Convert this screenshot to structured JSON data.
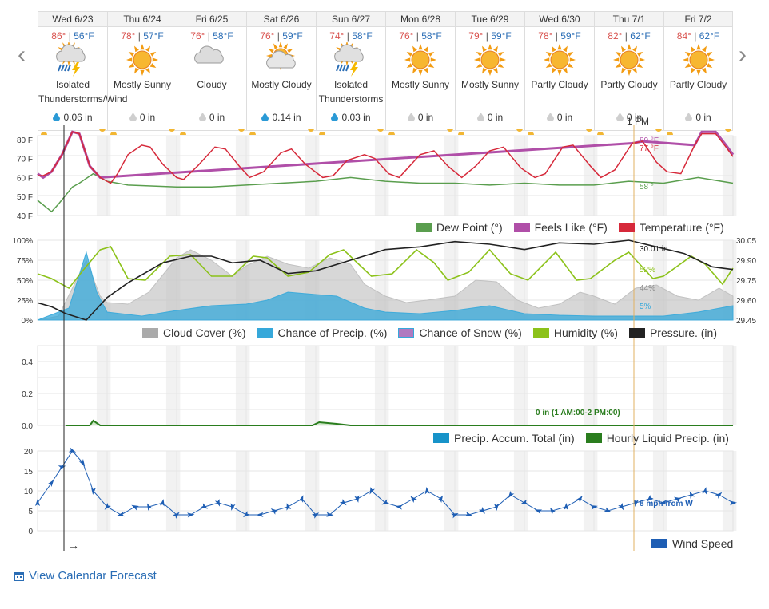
{
  "days": [
    {
      "label": "Wed 6/23",
      "hi": "86°",
      "lo": "56°F",
      "icon": "thunderstorm-icon",
      "cond1": "Isolated",
      "cond2": "Thunderstorms/Wind",
      "precip": "0.06 in",
      "drop": "blue"
    },
    {
      "label": "Thu 6/24",
      "hi": "78°",
      "lo": "57°F",
      "icon": "sun-icon",
      "cond1": "Mostly Sunny",
      "cond2": "",
      "precip": "0 in",
      "drop": "gray"
    },
    {
      "label": "Fri 6/25",
      "hi": "76°",
      "lo": "58°F",
      "icon": "cloud-icon",
      "cond1": "Cloudy",
      "cond2": "",
      "precip": "0 in",
      "drop": "gray"
    },
    {
      "label": "Sat 6/26",
      "hi": "76°",
      "lo": "59°F",
      "icon": "sun-cloud-icon",
      "cond1": "Mostly Cloudy",
      "cond2": "",
      "precip": "0.14 in",
      "drop": "blue"
    },
    {
      "label": "Sun 6/27",
      "hi": "74°",
      "lo": "58°F",
      "icon": "thunderstorm-icon",
      "cond1": "Isolated",
      "cond2": "Thunderstorms",
      "precip": "0.03 in",
      "drop": "blue"
    },
    {
      "label": "Mon 6/28",
      "hi": "76°",
      "lo": "58°F",
      "icon": "sun-icon",
      "cond1": "Mostly Sunny",
      "cond2": "",
      "precip": "0 in",
      "drop": "gray"
    },
    {
      "label": "Tue 6/29",
      "hi": "79°",
      "lo": "59°F",
      "icon": "sun-icon",
      "cond1": "Mostly Sunny",
      "cond2": "",
      "precip": "0 in",
      "drop": "gray"
    },
    {
      "label": "Wed 6/30",
      "hi": "78°",
      "lo": "59°F",
      "icon": "sun-icon",
      "cond1": "Partly Cloudy",
      "cond2": "",
      "precip": "0 in",
      "drop": "gray"
    },
    {
      "label": "Thu 7/1",
      "hi": "82°",
      "lo": "62°F",
      "icon": "sun-icon",
      "cond1": "Partly Cloudy",
      "cond2": "",
      "precip": "0 in",
      "drop": "gray"
    },
    {
      "label": "Fri 7/2",
      "hi": "84°",
      "lo": "62°F",
      "icon": "sun-icon",
      "cond1": "Partly Cloudy",
      "cond2": "",
      "precip": "0 in",
      "drop": "gray"
    }
  ],
  "nav": {
    "prev": "‹",
    "next": "›"
  },
  "cursor": {
    "time": "1 PM"
  },
  "calendar_link": "View Calendar Forecast",
  "colors": {
    "temperature": "#d6293a",
    "feels_like": "#b04fa8",
    "dew_point": "#5a9e4e",
    "cloud": "#bdbdbd",
    "precip_chance": "#36a8da",
    "humidity": "#8cc21a",
    "pressure": "#222222",
    "accum": "#1793c9",
    "hourly_precip": "#2a7d1e",
    "wind": "#1e5eb4",
    "cursor": "#e0b060"
  },
  "chart_data": [
    {
      "type": "line",
      "name": "temperature-panel",
      "ylim": [
        40,
        90
      ],
      "yticks": [
        "80 F",
        "70 F",
        "60 F",
        "50 F",
        "40 F"
      ],
      "legend": [
        "Dew Point (°)",
        "Feels Like (°F)",
        "Temperature (°F)"
      ],
      "x_days": [
        0,
        1,
        2,
        3,
        4,
        5,
        6,
        7,
        8,
        9,
        10
      ],
      "temperature_points": [
        [
          0,
          61
        ],
        [
          0.08,
          61
        ],
        [
          0.2,
          63
        ],
        [
          0.35,
          72
        ],
        [
          0.5,
          84
        ],
        [
          0.6,
          83
        ],
        [
          0.75,
          66
        ],
        [
          0.9,
          60
        ],
        [
          1.05,
          57
        ],
        [
          1.15,
          62
        ],
        [
          1.3,
          72
        ],
        [
          1.5,
          77
        ],
        [
          1.62,
          76
        ],
        [
          1.8,
          67
        ],
        [
          2.0,
          60
        ],
        [
          2.1,
          59
        ],
        [
          2.3,
          66
        ],
        [
          2.55,
          76
        ],
        [
          2.7,
          75
        ],
        [
          2.9,
          66
        ],
        [
          3.05,
          60
        ],
        [
          3.25,
          63
        ],
        [
          3.5,
          73
        ],
        [
          3.65,
          75
        ],
        [
          3.85,
          67
        ],
        [
          4.1,
          60
        ],
        [
          4.25,
          61
        ],
        [
          4.45,
          69
        ],
        [
          4.7,
          72
        ],
        [
          4.85,
          70
        ],
        [
          5.05,
          62
        ],
        [
          5.2,
          60
        ],
        [
          5.5,
          72
        ],
        [
          5.7,
          74
        ],
        [
          5.9,
          66
        ],
        [
          6.1,
          60
        ],
        [
          6.3,
          66
        ],
        [
          6.5,
          74
        ],
        [
          6.7,
          76
        ],
        [
          6.95,
          65
        ],
        [
          7.15,
          60
        ],
        [
          7.3,
          62
        ],
        [
          7.55,
          76
        ],
        [
          7.7,
          77
        ],
        [
          7.95,
          66
        ],
        [
          8.1,
          60
        ],
        [
          8.3,
          64
        ],
        [
          8.55,
          78
        ],
        [
          8.7,
          79
        ],
        [
          8.9,
          68
        ],
        [
          9.05,
          63
        ],
        [
          9.25,
          62
        ],
        [
          9.45,
          77
        ],
        [
          9.55,
          83
        ],
        [
          9.75,
          83
        ],
        [
          9.9,
          76
        ],
        [
          10,
          71
        ]
      ],
      "feels_like_points": [
        [
          0,
          62
        ],
        [
          0.08,
          60
        ],
        [
          0.2,
          63
        ],
        [
          0.35,
          72
        ],
        [
          0.5,
          84
        ],
        [
          0.6,
          83
        ],
        [
          0.75,
          66
        ],
        [
          0.9,
          60
        ],
        [
          8.55,
          78
        ],
        [
          8.7,
          79
        ],
        [
          9.45,
          77
        ],
        [
          9.55,
          84
        ],
        [
          9.75,
          84
        ],
        [
          9.9,
          77
        ],
        [
          10,
          72
        ]
      ],
      "dew_point_points": [
        [
          0,
          48
        ],
        [
          0.1,
          45
        ],
        [
          0.2,
          42
        ],
        [
          0.3,
          46
        ],
        [
          0.5,
          55
        ],
        [
          0.6,
          57
        ],
        [
          0.8,
          62
        ],
        [
          1.0,
          58
        ],
        [
          1.3,
          56
        ],
        [
          2.0,
          55
        ],
        [
          2.5,
          55
        ],
        [
          3.0,
          56
        ],
        [
          3.5,
          57
        ],
        [
          4.0,
          58
        ],
        [
          4.5,
          60
        ],
        [
          5.0,
          58
        ],
        [
          5.5,
          57
        ],
        [
          6.0,
          57
        ],
        [
          6.5,
          56
        ],
        [
          7.0,
          57
        ],
        [
          7.5,
          56
        ],
        [
          8.0,
          56
        ],
        [
          8.5,
          58
        ],
        [
          9.0,
          57
        ],
        [
          9.5,
          60
        ],
        [
          10,
          57
        ]
      ],
      "labels": [
        "80 °F",
        "77 °F",
        "58 °"
      ]
    },
    {
      "type": "area",
      "name": "sky-panel",
      "ylim": [
        0,
        100
      ],
      "yticks": [
        "100%",
        "75%",
        "50%",
        "25%",
        "0%"
      ],
      "y2ticks": [
        "30.05",
        "29.90",
        "29.75",
        "29.60",
        "29.45"
      ],
      "y2lim": [
        29.45,
        30.05
      ],
      "legend": [
        "Cloud Cover (%)",
        "Chance of Precip. (%)",
        "Chance of Snow (%)",
        "Humidity (%)",
        "Pressure. (in)"
      ],
      "cloud_points": [
        [
          0,
          0
        ],
        [
          0.3,
          5
        ],
        [
          0.5,
          40
        ],
        [
          0.7,
          75
        ],
        [
          0.9,
          30
        ],
        [
          1.0,
          22
        ],
        [
          1.3,
          20
        ],
        [
          1.6,
          35
        ],
        [
          2.0,
          78
        ],
        [
          2.2,
          88
        ],
        [
          2.5,
          75
        ],
        [
          2.8,
          55
        ],
        [
          3.0,
          68
        ],
        [
          3.3,
          80
        ],
        [
          3.6,
          70
        ],
        [
          3.9,
          65
        ],
        [
          4.2,
          78
        ],
        [
          4.5,
          70
        ],
        [
          4.7,
          45
        ],
        [
          5.0,
          30
        ],
        [
          5.3,
          22
        ],
        [
          5.6,
          25
        ],
        [
          6.0,
          30
        ],
        [
          6.3,
          50
        ],
        [
          6.6,
          48
        ],
        [
          6.9,
          25
        ],
        [
          7.2,
          15
        ],
        [
          7.5,
          20
        ],
        [
          7.8,
          35
        ],
        [
          8.0,
          30
        ],
        [
          8.3,
          20
        ],
        [
          8.6,
          40
        ],
        [
          8.9,
          44
        ],
        [
          9.2,
          30
        ],
        [
          9.5,
          25
        ],
        [
          9.8,
          40
        ],
        [
          10,
          30
        ]
      ],
      "precip_points": [
        [
          0,
          0
        ],
        [
          0.45,
          15
        ],
        [
          0.7,
          85
        ],
        [
          0.85,
          35
        ],
        [
          1.0,
          10
        ],
        [
          1.5,
          5
        ],
        [
          2.0,
          12
        ],
        [
          2.5,
          18
        ],
        [
          3.0,
          20
        ],
        [
          3.3,
          25
        ],
        [
          3.6,
          35
        ],
        [
          4.0,
          32
        ],
        [
          4.3,
          30
        ],
        [
          4.7,
          15
        ],
        [
          5.0,
          10
        ],
        [
          5.5,
          8
        ],
        [
          6.0,
          12
        ],
        [
          6.5,
          18
        ],
        [
          6.8,
          12
        ],
        [
          7.0,
          8
        ],
        [
          7.5,
          6
        ],
        [
          8.0,
          5
        ],
        [
          8.5,
          5
        ],
        [
          9.0,
          5
        ],
        [
          9.5,
          10
        ],
        [
          10,
          18
        ]
      ],
      "humidity_points": [
        [
          0,
          58
        ],
        [
          0.2,
          52
        ],
        [
          0.45,
          40
        ],
        [
          0.65,
          62
        ],
        [
          0.9,
          88
        ],
        [
          1.05,
          92
        ],
        [
          1.3,
          52
        ],
        [
          1.55,
          50
        ],
        [
          1.9,
          80
        ],
        [
          2.2,
          82
        ],
        [
          2.5,
          55
        ],
        [
          2.8,
          55
        ],
        [
          3.1,
          80
        ],
        [
          3.3,
          78
        ],
        [
          3.6,
          55
        ],
        [
          3.9,
          60
        ],
        [
          4.2,
          82
        ],
        [
          4.4,
          88
        ],
        [
          4.8,
          55
        ],
        [
          5.1,
          58
        ],
        [
          5.45,
          88
        ],
        [
          5.7,
          72
        ],
        [
          5.9,
          50
        ],
        [
          6.2,
          60
        ],
        [
          6.5,
          88
        ],
        [
          6.8,
          58
        ],
        [
          7.05,
          50
        ],
        [
          7.45,
          85
        ],
        [
          7.75,
          50
        ],
        [
          7.95,
          52
        ],
        [
          8.3,
          75
        ],
        [
          8.5,
          85
        ],
        [
          8.85,
          52
        ],
        [
          9.0,
          55
        ],
        [
          9.4,
          80
        ],
        [
          9.6,
          70
        ],
        [
          9.85,
          45
        ],
        [
          10,
          65
        ]
      ],
      "pressure_points": [
        [
          0,
          29.58
        ],
        [
          0.2,
          29.55
        ],
        [
          0.4,
          29.5
        ],
        [
          0.7,
          29.45
        ],
        [
          1.0,
          29.62
        ],
        [
          1.3,
          29.73
        ],
        [
          1.8,
          29.88
        ],
        [
          2.2,
          29.93
        ],
        [
          2.5,
          29.93
        ],
        [
          2.8,
          29.88
        ],
        [
          3.2,
          29.9
        ],
        [
          3.6,
          29.8
        ],
        [
          4.0,
          29.82
        ],
        [
          4.5,
          29.9
        ],
        [
          5.0,
          29.98
        ],
        [
          5.5,
          30.0
        ],
        [
          6.0,
          30.04
        ],
        [
          6.5,
          30.02
        ],
        [
          7.0,
          29.98
        ],
        [
          7.5,
          30.03
        ],
        [
          8.0,
          30.02
        ],
        [
          8.5,
          30.05
        ],
        [
          8.9,
          30.0
        ],
        [
          9.3,
          29.95
        ],
        [
          9.7,
          29.85
        ],
        [
          10,
          29.83
        ]
      ],
      "labels": [
        "30.01 in",
        "52%",
        "44%",
        "5%"
      ]
    },
    {
      "type": "line",
      "name": "precip-panel",
      "ylim": [
        0,
        0.5
      ],
      "yticks": [
        "0.4",
        "0.2",
        "0.0"
      ],
      "legend": [
        "Precip. Accum. Total (in)",
        "Hourly Liquid Precip. (in)"
      ],
      "hourly_points": [
        [
          0,
          0
        ],
        [
          0.4,
          0
        ],
        [
          0.75,
          0
        ],
        [
          0.8,
          0.03
        ],
        [
          0.9,
          0
        ],
        [
          3.95,
          0
        ],
        [
          4.05,
          0.02
        ],
        [
          4.3,
          0.01
        ],
        [
          4.5,
          0
        ],
        [
          10,
          0
        ]
      ],
      "label": "0 in (1 AM:00-2 PM:00)"
    },
    {
      "type": "line",
      "name": "wind-panel",
      "ylim": [
        0,
        20
      ],
      "yticks": [
        "20",
        "15",
        "10",
        "5",
        "0"
      ],
      "legend": [
        "Wind Speed"
      ],
      "wind_points": [
        [
          0,
          7
        ],
        [
          0.2,
          12
        ],
        [
          0.35,
          16
        ],
        [
          0.5,
          20
        ],
        [
          0.65,
          17
        ],
        [
          0.8,
          10
        ],
        [
          1.0,
          6
        ],
        [
          1.2,
          4
        ],
        [
          1.4,
          6
        ],
        [
          1.6,
          6
        ],
        [
          1.8,
          7
        ],
        [
          2.0,
          4
        ],
        [
          2.2,
          4
        ],
        [
          2.4,
          6
        ],
        [
          2.6,
          7
        ],
        [
          2.8,
          6
        ],
        [
          3.0,
          4
        ],
        [
          3.2,
          4
        ],
        [
          3.4,
          5
        ],
        [
          3.6,
          6
        ],
        [
          3.8,
          8
        ],
        [
          4.0,
          4
        ],
        [
          4.2,
          4
        ],
        [
          4.4,
          7
        ],
        [
          4.6,
          8
        ],
        [
          4.8,
          10
        ],
        [
          5.0,
          7
        ],
        [
          5.2,
          6
        ],
        [
          5.4,
          8
        ],
        [
          5.6,
          10
        ],
        [
          5.8,
          8
        ],
        [
          6.0,
          4
        ],
        [
          6.2,
          4
        ],
        [
          6.4,
          5
        ],
        [
          6.6,
          6
        ],
        [
          6.8,
          9
        ],
        [
          7.0,
          7
        ],
        [
          7.2,
          5
        ],
        [
          7.4,
          5
        ],
        [
          7.6,
          6
        ],
        [
          7.8,
          8
        ],
        [
          8.0,
          6
        ],
        [
          8.2,
          5
        ],
        [
          8.4,
          6
        ],
        [
          8.6,
          7
        ],
        [
          8.8,
          8
        ],
        [
          9.0,
          7
        ],
        [
          9.2,
          8
        ],
        [
          9.4,
          9
        ],
        [
          9.6,
          10
        ],
        [
          9.8,
          9
        ],
        [
          10,
          7
        ]
      ],
      "label": "8 mph from W"
    }
  ],
  "arrow": "→"
}
